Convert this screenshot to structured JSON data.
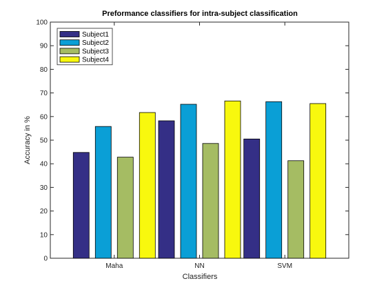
{
  "chart_data": {
    "type": "bar",
    "title": "Preformance classifiers for intra-subject classification",
    "xlabel": "Classifiers",
    "ylabel": "Accuracy in %",
    "categories": [
      "Maha",
      "NN",
      "SVM"
    ],
    "ylim": [
      0,
      100
    ],
    "yticks": [
      0,
      10,
      20,
      30,
      40,
      50,
      60,
      70,
      80,
      90,
      100
    ],
    "grid": false,
    "legend_position": "top-left",
    "series": [
      {
        "name": "Subject1",
        "color": "#342f86",
        "values": [
          44.8,
          58.2,
          50.5
        ]
      },
      {
        "name": "Subject2",
        "color": "#0a9fd6",
        "values": [
          55.8,
          65.2,
          66.3
        ]
      },
      {
        "name": "Subject3",
        "color": "#a5bc63",
        "values": [
          42.8,
          48.6,
          41.3
        ]
      },
      {
        "name": "Subject4",
        "color": "#f8f80e",
        "values": [
          61.7,
          66.6,
          65.5
        ]
      }
    ]
  }
}
